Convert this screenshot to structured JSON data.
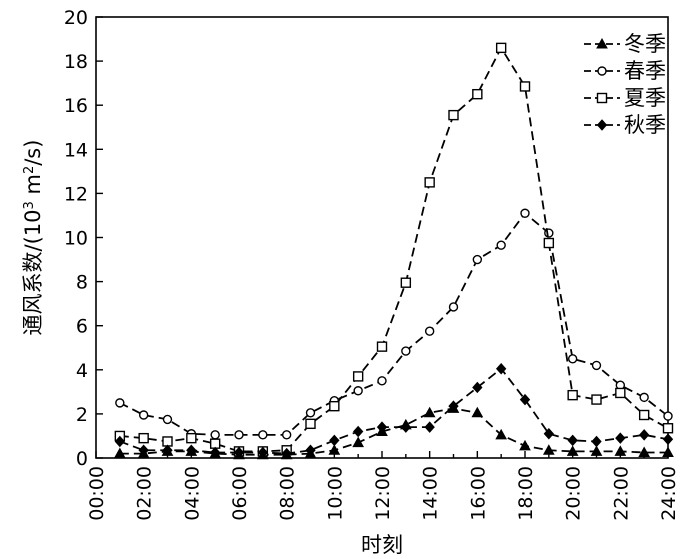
{
  "chart_data": {
    "type": "line",
    "xlabel": "时刻",
    "ylabel": "通风系数/(10",
    "ylabel_sup": "3",
    "ylabel_tail": " m",
    "ylabel_sup2": "2",
    "ylabel_end": "/s)",
    "xlim": [
      0,
      24
    ],
    "ylim": [
      0,
      20
    ],
    "x_ticks": [
      "00:00",
      "02:00",
      "04:00",
      "06:00",
      "08:00",
      "10:00",
      "12:00",
      "14:00",
      "16:00",
      "18:00",
      "20:00",
      "22:00",
      "24:00"
    ],
    "x_tick_values": [
      0,
      2,
      4,
      6,
      8,
      10,
      12,
      14,
      16,
      18,
      20,
      22,
      24
    ],
    "y_ticks": [
      "0",
      "2",
      "4",
      "6",
      "8",
      "10",
      "12",
      "14",
      "16",
      "18",
      "20"
    ],
    "y_tick_values": [
      0,
      2,
      4,
      6,
      8,
      10,
      12,
      14,
      16,
      18,
      20
    ],
    "x": [
      1,
      2,
      3,
      4,
      5,
      6,
      7,
      8,
      9,
      10,
      11,
      12,
      13,
      14,
      15,
      16,
      17,
      18,
      19,
      20,
      21,
      22,
      23,
      24
    ],
    "legend_position": "top-right",
    "series": [
      {
        "name": "冬季",
        "marker": "triangle",
        "values": [
          0.2,
          0.2,
          0.3,
          0.3,
          0.2,
          0.15,
          0.15,
          0.15,
          0.2,
          0.35,
          0.7,
          1.2,
          1.5,
          2.05,
          2.25,
          2.05,
          1.05,
          0.55,
          0.35,
          0.3,
          0.3,
          0.3,
          0.25,
          0.25
        ]
      },
      {
        "name": "春季",
        "marker": "circle",
        "values": [
          2.5,
          1.95,
          1.75,
          1.1,
          1.05,
          1.05,
          1.05,
          1.05,
          2.05,
          2.6,
          3.05,
          3.5,
          4.85,
          5.75,
          6.85,
          9.0,
          9.65,
          11.1,
          10.2,
          4.5,
          4.2,
          3.3,
          2.75,
          1.9
        ]
      },
      {
        "name": "夏季",
        "marker": "square",
        "values": [
          1.0,
          0.9,
          0.75,
          0.9,
          0.65,
          0.3,
          0.3,
          0.35,
          1.55,
          2.35,
          3.7,
          5.05,
          7.95,
          12.5,
          15.55,
          16.5,
          18.6,
          16.85,
          9.75,
          2.85,
          2.65,
          2.95,
          1.95,
          1.35
        ]
      },
      {
        "name": "秋季",
        "marker": "diamond",
        "values": [
          0.75,
          0.35,
          0.35,
          0.35,
          0.25,
          0.25,
          0.25,
          0.2,
          0.35,
          0.8,
          1.2,
          1.4,
          1.4,
          1.4,
          2.35,
          3.2,
          4.05,
          2.65,
          1.1,
          0.8,
          0.75,
          0.9,
          1.05,
          0.85
        ]
      }
    ]
  }
}
